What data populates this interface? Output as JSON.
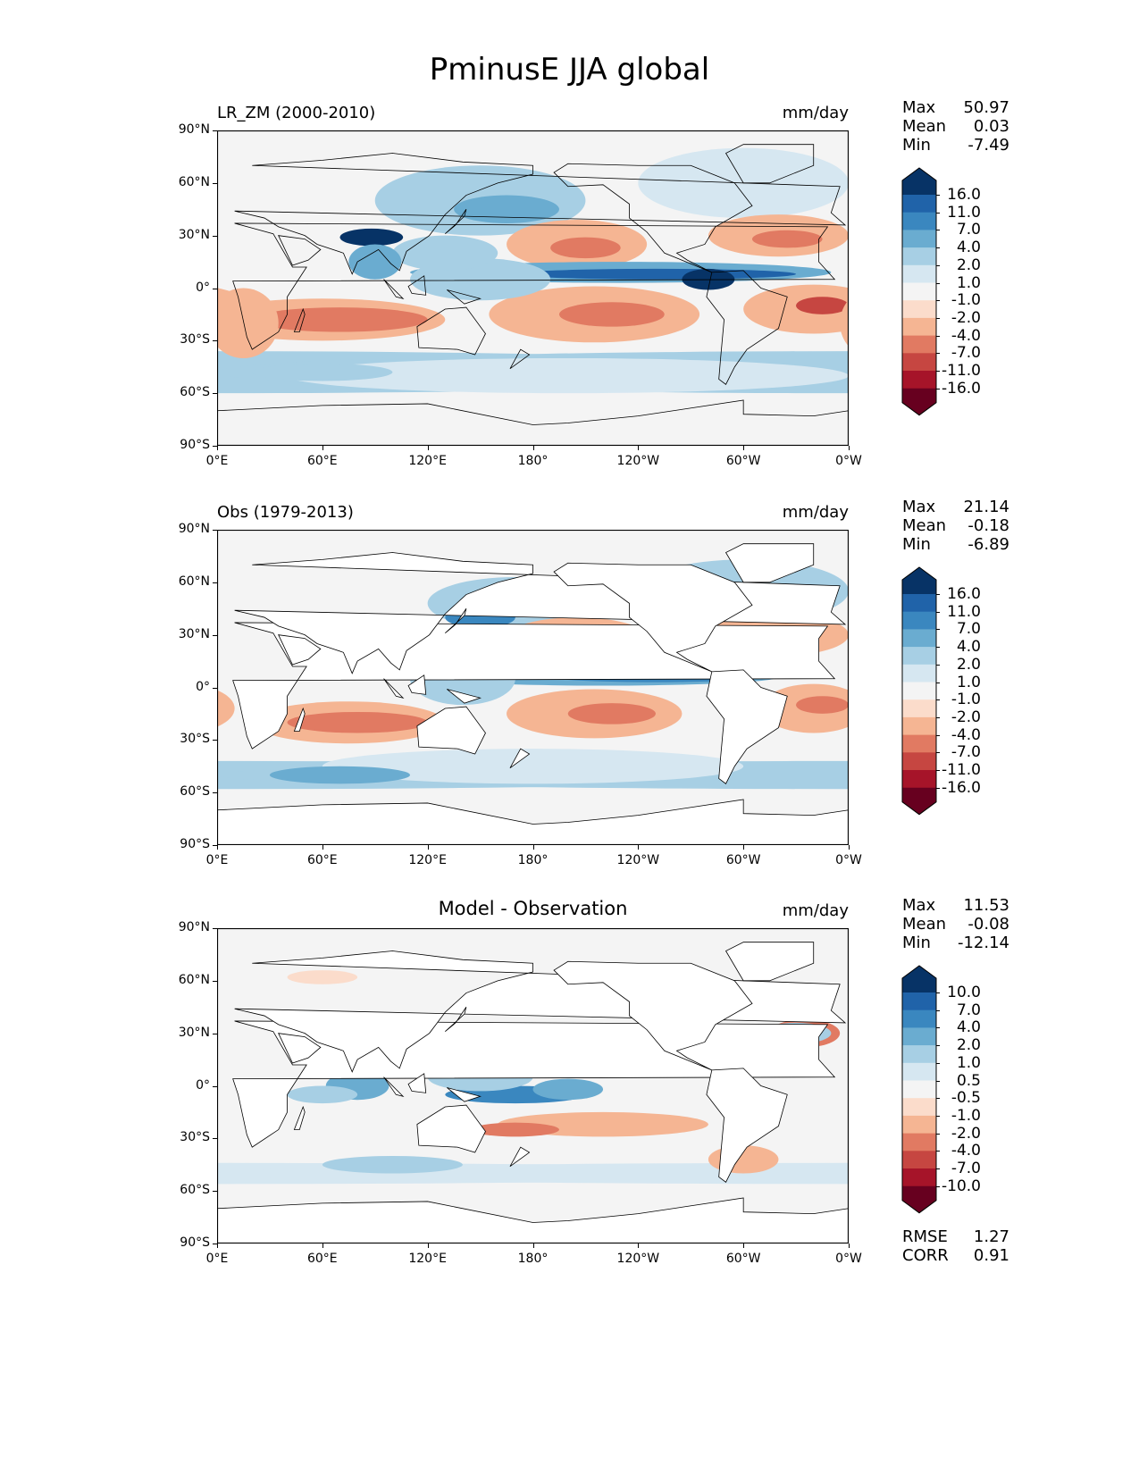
{
  "title": "PminusE JJA global",
  "axes": {
    "xticks": [
      "0°E",
      "60°E",
      "120°E",
      "180°",
      "120°W",
      "60°W",
      "0°W"
    ],
    "yticks": [
      "90°N",
      "60°N",
      "30°N",
      "0°",
      "30°S",
      "60°S",
      "90°S"
    ]
  },
  "panels": [
    {
      "left_title": "LR_ZM (2000-2010)",
      "center_title": "",
      "units": "mm/day",
      "stats": [
        {
          "label": "Max",
          "value": "50.97"
        },
        {
          "label": "Mean",
          "value": "0.03"
        },
        {
          "label": "Min",
          "value": "-7.49"
        }
      ],
      "colorbar": [
        "16.0",
        "11.0",
        "7.0",
        "4.0",
        "2.0",
        "1.0",
        "-1.0",
        "-2.0",
        "-4.0",
        "-7.0",
        "-11.0",
        "-16.0"
      ],
      "masked_land": false,
      "field": "model"
    },
    {
      "left_title": "Obs (1979-2013)",
      "center_title": "",
      "units": "mm/day",
      "stats": [
        {
          "label": "Max",
          "value": "21.14"
        },
        {
          "label": "Mean",
          "value": "-0.18"
        },
        {
          "label": "Min",
          "value": "-6.89"
        }
      ],
      "colorbar": [
        "16.0",
        "11.0",
        "7.0",
        "4.0",
        "2.0",
        "1.0",
        "-1.0",
        "-2.0",
        "-4.0",
        "-7.0",
        "-11.0",
        "-16.0"
      ],
      "masked_land": true,
      "field": "obs"
    },
    {
      "left_title": "",
      "center_title": "Model - Observation",
      "units": "mm/day",
      "stats": [
        {
          "label": "Max",
          "value": "11.53"
        },
        {
          "label": "Mean",
          "value": "-0.08"
        },
        {
          "label": "Min",
          "value": "-12.14"
        }
      ],
      "colorbar": [
        "10.0",
        "7.0",
        "4.0",
        "2.0",
        "1.0",
        "0.5",
        "-0.5",
        "-1.0",
        "-2.0",
        "-4.0",
        "-7.0",
        "-10.0"
      ],
      "masked_land": true,
      "field": "diff",
      "metrics": [
        {
          "label": "RMSE",
          "value": "1.27"
        },
        {
          "label": "CORR",
          "value": "0.91"
        }
      ]
    }
  ],
  "colors": [
    "#67001f",
    "#a61429",
    "#c64641",
    "#e17a62",
    "#f5b593",
    "#fbdccb",
    "#f4f4f4",
    "#d6e7f1",
    "#a7cfe4",
    "#6aacd0",
    "#3a87bf",
    "#2063a9",
    "#073366"
  ]
}
